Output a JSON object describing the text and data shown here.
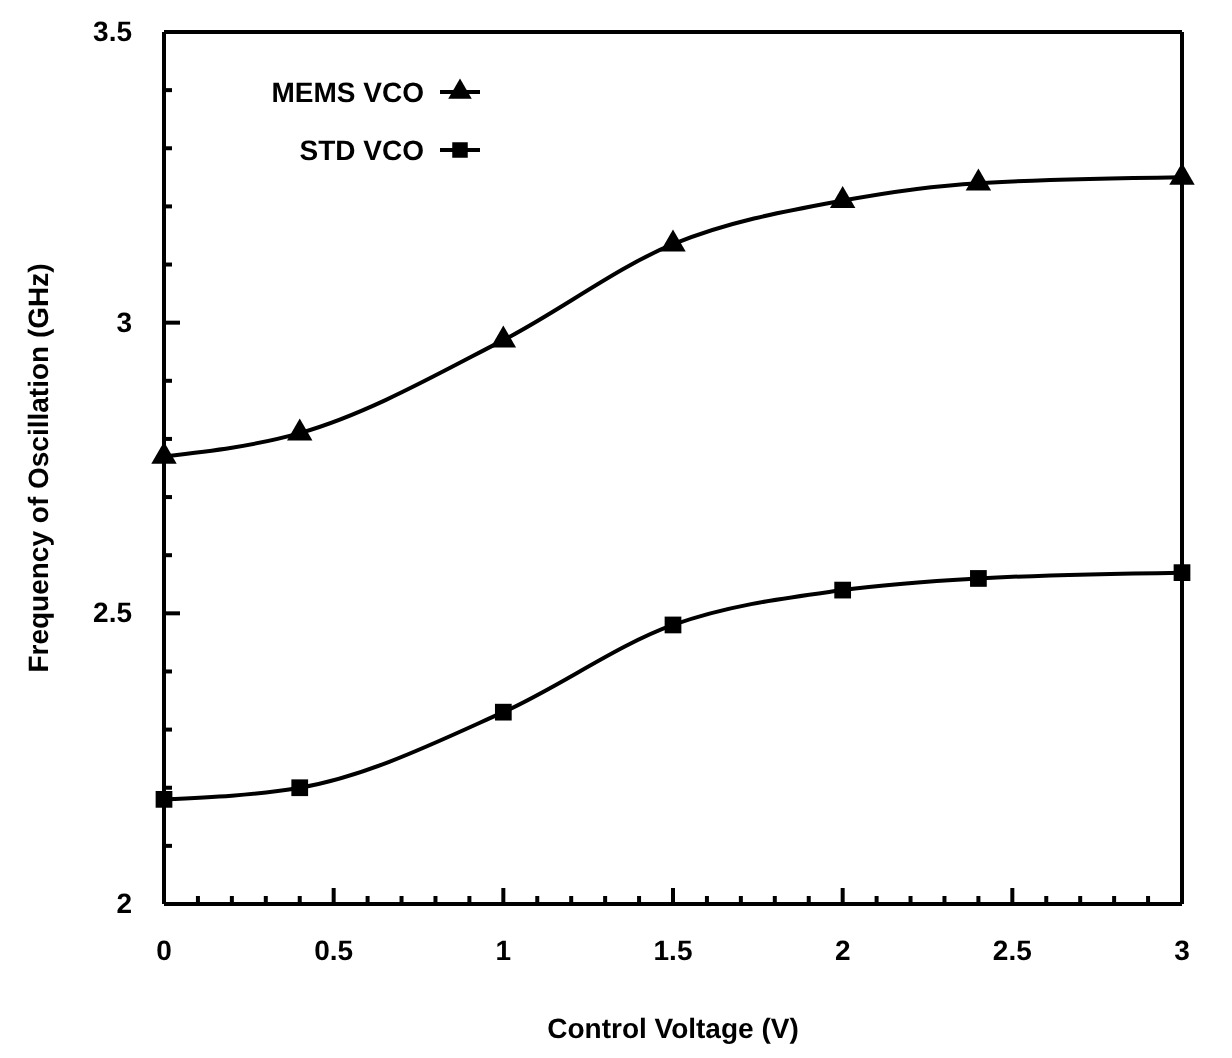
{
  "chart_data": {
    "type": "line",
    "xlabel": "Control Voltage (V)",
    "ylabel": "Frequency of Oscillation (GHz)",
    "x": [
      0,
      0.4,
      1,
      1.5,
      2,
      2.4,
      3
    ],
    "series": [
      {
        "name": "MEMS VCO",
        "color": "#000000",
        "marker": "triangle",
        "values": [
          2.77,
          2.81,
          2.97,
          3.135,
          3.21,
          3.24,
          3.25
        ]
      },
      {
        "name": "STD VCO",
        "color": "#000000",
        "marker": "square",
        "values": [
          2.18,
          2.2,
          2.33,
          2.48,
          2.54,
          2.56,
          2.57
        ]
      }
    ],
    "xlim": [
      0,
      3
    ],
    "ylim": [
      2,
      3.5
    ],
    "xticks": [
      0,
      {
        "value": 0.1,
        "label": null
      },
      {
        "value": 0.2,
        "label": null
      },
      {
        "value": 0.3,
        "label": null
      },
      {
        "value": 0.4,
        "label": null
      },
      0.5,
      {
        "value": 0.6,
        "label": null
      },
      {
        "value": 0.7,
        "label": null
      },
      {
        "value": 0.8,
        "label": null
      },
      {
        "value": 0.9,
        "label": null
      },
      1,
      {
        "value": 1.1,
        "label": null
      },
      {
        "value": 1.2,
        "label": null
      },
      {
        "value": 1.3,
        "label": null
      },
      {
        "value": 1.4,
        "label": null
      },
      1.5,
      {
        "value": 1.6,
        "label": null
      },
      {
        "value": 1.7,
        "label": null
      },
      {
        "value": 1.8,
        "label": null
      },
      {
        "value": 1.9,
        "label": null
      },
      2,
      {
        "value": 2.1,
        "label": null
      },
      {
        "value": 2.2,
        "label": null
      },
      {
        "value": 2.3,
        "label": null
      },
      {
        "value": 2.4,
        "label": null
      },
      2.5,
      {
        "value": 2.6,
        "label": null
      },
      {
        "value": 2.7,
        "label": null
      },
      {
        "value": 2.8,
        "label": null
      },
      {
        "value": 2.9,
        "label": null
      },
      3
    ],
    "yticks": [
      2,
      {
        "value": 2.1,
        "label": null
      },
      {
        "value": 2.2,
        "label": null
      },
      {
        "value": 2.3,
        "label": null
      },
      {
        "value": 2.4,
        "label": null
      },
      2.5,
      {
        "value": 2.6,
        "label": null
      },
      {
        "value": 2.7,
        "label": null
      },
      {
        "value": 2.8,
        "label": null
      },
      {
        "value": 2.9,
        "label": null
      },
      3,
      {
        "value": 3.1,
        "label": null
      },
      {
        "value": 3.2,
        "label": null
      },
      {
        "value": 3.3,
        "label": null
      },
      {
        "value": 3.4,
        "label": null
      },
      3.5
    ],
    "grid": false,
    "legend": "top left",
    "line_style": "solid"
  }
}
